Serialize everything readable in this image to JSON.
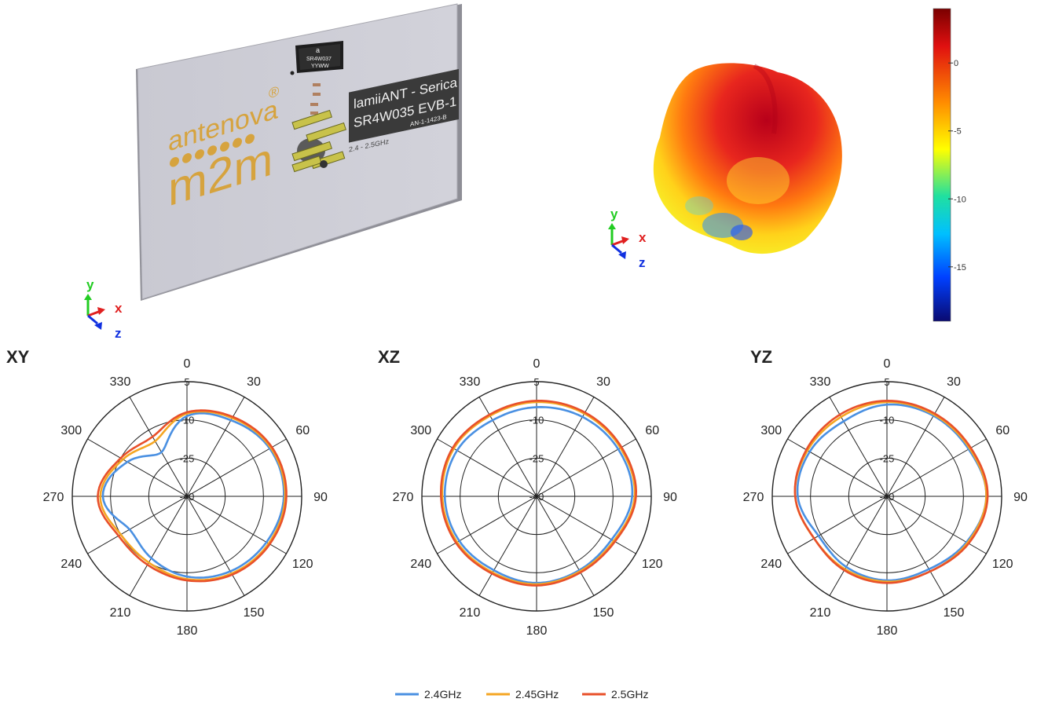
{
  "board": {
    "brand_top": "antenova",
    "brand_reg": "®",
    "brand_bottom": "m2m",
    "label_line1": "lamiiANT - Serica",
    "label_line2": "SR4W035 EVB-1",
    "label_code": "AN-1-1423-B",
    "freq_range": "2.4 - 2.5GHz",
    "chip_line1": "a",
    "chip_line2": "SR4W037",
    "chip_line3": "YYWW"
  },
  "axes_triad": {
    "x": "x",
    "y": "y",
    "z": "z"
  },
  "colors": {
    "s24": "#4a90e2",
    "s245": "#f5a623",
    "s25": "#e8502a",
    "axis_x": "#e02020",
    "axis_y": "#22cc22",
    "axis_z": "#1030e0"
  },
  "colorbar": {
    "max": 4,
    "min": -19,
    "ticks": [
      "0",
      "-5",
      "-10",
      "-15"
    ],
    "tick_values": [
      0,
      -5,
      -10,
      -15
    ]
  },
  "chart_data": [
    {
      "type": "polar",
      "title": "XY",
      "angle_labels": [
        "0",
        "30",
        "60",
        "90",
        "120",
        "150",
        "180",
        "210",
        "240",
        "270",
        "300",
        "330"
      ],
      "radial_labels": [
        "5",
        "-10",
        "-25",
        "-40"
      ],
      "rlim": [
        -40,
        5
      ],
      "angles": [
        0,
        30,
        60,
        90,
        120,
        150,
        180,
        210,
        240,
        270,
        300,
        330
      ],
      "series": [
        {
          "name": "2.4GHz",
          "values": [
            -8.5,
            -5.5,
            -2.5,
            -2,
            -4,
            -6,
            -8.5,
            -12,
            -14,
            -7,
            -13,
            -20
          ]
        },
        {
          "name": "2.45GHz",
          "values": [
            -7.5,
            -4.5,
            -2,
            -1.5,
            -3,
            -5,
            -7.5,
            -10,
            -10,
            -6,
            -11,
            -15
          ]
        },
        {
          "name": "2.5GHz",
          "values": [
            -7,
            -4,
            -1.5,
            -1,
            -2.5,
            -4.5,
            -7,
            -9,
            -9,
            -5,
            -10,
            -13
          ]
        }
      ]
    },
    {
      "type": "polar",
      "title": "XZ",
      "angle_labels": [
        "0",
        "30",
        "60",
        "90",
        "120",
        "150",
        "180",
        "210",
        "240",
        "270",
        "300",
        "330"
      ],
      "radial_labels": [
        "5",
        "-10",
        "-25",
        "-40"
      ],
      "rlim": [
        -40,
        5
      ],
      "angles": [
        0,
        30,
        60,
        90,
        120,
        150,
        180,
        210,
        240,
        270,
        300,
        330
      ],
      "series": [
        {
          "name": "2.4GHz",
          "values": [
            -5,
            -4,
            -3,
            -2.5,
            -6,
            -6.5,
            -6,
            -6.5,
            -5,
            -4,
            -4,
            -5.5
          ]
        },
        {
          "name": "2.45GHz",
          "values": [
            -3,
            -2.5,
            -2,
            -1.5,
            -5,
            -6,
            -5.5,
            -5.5,
            -4,
            -3,
            -2.5,
            -3.5
          ]
        },
        {
          "name": "2.5GHz",
          "values": [
            -2.5,
            -2,
            -1.5,
            -1,
            -4.5,
            -5.5,
            -5,
            -5,
            -3.5,
            -2.5,
            -2,
            -3
          ]
        }
      ]
    },
    {
      "type": "polar",
      "title": "YZ",
      "angle_labels": [
        "0",
        "30",
        "60",
        "90",
        "120",
        "150",
        "180",
        "210",
        "240",
        "270",
        "300",
        "330"
      ],
      "radial_labels": [
        "5",
        "-10",
        "-25",
        "-40"
      ],
      "rlim": [
        -40,
        5
      ],
      "angles": [
        0,
        30,
        60,
        90,
        120,
        150,
        180,
        210,
        240,
        270,
        300,
        330
      ],
      "series": [
        {
          "name": "2.4GHz",
          "values": [
            -4,
            -3.5,
            -3,
            -1,
            -4,
            -7,
            -7,
            -8,
            -9,
            -5,
            -5,
            -6
          ]
        },
        {
          "name": "2.45GHz",
          "values": [
            -3,
            -3,
            -2.5,
            -1,
            -3.5,
            -6,
            -6.5,
            -7,
            -7,
            -4,
            -4,
            -4
          ]
        },
        {
          "name": "2.5GHz",
          "values": [
            -2.5,
            -2.5,
            -2,
            -0.5,
            -3,
            -6,
            -6,
            -6.5,
            -7,
            -4,
            -3.5,
            -3
          ]
        }
      ]
    }
  ],
  "legend": {
    "items": [
      "2.4GHz",
      "2.45GHz",
      "2.5GHz"
    ]
  }
}
